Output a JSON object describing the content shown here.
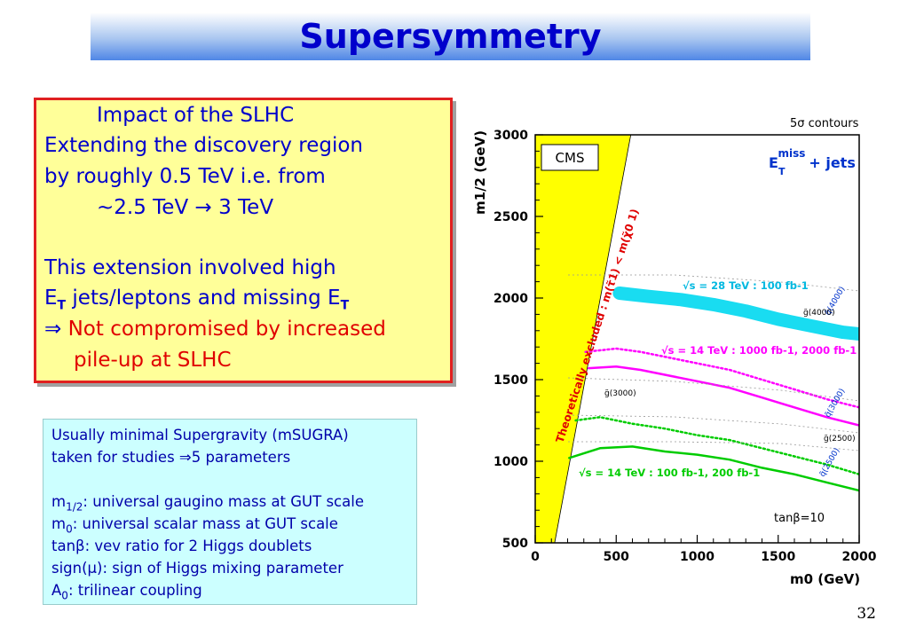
{
  "slide": {
    "title": "Supersymmetry",
    "page_number": "32"
  },
  "box1": {
    "line1": "Impact of the SLHC",
    "line2": "Extending the discovery region",
    "line3": "by roughly 0.5 TeV i.e. from",
    "line4": "~2.5 TeV → 3 TeV",
    "line5": "This extension involved high",
    "line6a": "E",
    "line6b": "T",
    "line6c": " jets/leptons and missing E",
    "line6d": "T",
    "line7a": "⇒",
    "line7b": " Not compromised by increased",
    "line8": "pile-up at SLHC"
  },
  "box2": {
    "line1": "Usually minimal Supergravity (mSUGRA)",
    "line2a": "taken for  studies ",
    "line2b": "⇒",
    "line2c": "5 parameters",
    "line3a": "m",
    "line3b": "1/2",
    "line3c": ": universal gaugino mass at GUT scale",
    "line4a": "m",
    "line4b": "0",
    "line4c": ":    universal scalar mass at GUT scale",
    "line5": "tanβ: vev ratio for 2 Higgs doublets",
    "line6": "sign(μ): sign of Higgs mixing parameter",
    "line7a": "A",
    "line7b": "0",
    "line7c": ":    trilinear coupling"
  },
  "chart_data": {
    "type": "line",
    "title": "5σ contours",
    "xlabel": "m0  (GeV)",
    "ylabel": "m1/2  (GeV)",
    "xlim": [
      0,
      2000
    ],
    "ylim": [
      500,
      3000
    ],
    "x_ticks": [
      "0",
      "500",
      "1000",
      "1500",
      "2000"
    ],
    "y_ticks": [
      "500",
      "1000",
      "1500",
      "2000",
      "2500",
      "3000"
    ],
    "channel_label": "E_T^miss + jets",
    "experiment_label": "CMS",
    "parameter_label": "tanβ=10",
    "excluded_region": {
      "label": "Theoretically excluded  :  m(τ̃1) < m(χ̃0 1)",
      "color": "#ffff00",
      "boundary": [
        [
          120,
          500
        ],
        [
          590,
          3000
        ]
      ]
    },
    "series": [
      {
        "name": "√s = 28 TeV : 100 fb-1",
        "color": "#00d8f0",
        "style": "band",
        "x": [
          520,
          700,
          900,
          1100,
          1300,
          1500,
          1700,
          1900,
          2000
        ],
        "y": [
          2030,
          2010,
          1990,
          1960,
          1920,
          1870,
          1830,
          1790,
          1780
        ]
      },
      {
        "name": "√s = 14 TeV : 1000 fb-1",
        "color": "#ff00ff",
        "style": "solid",
        "x": [
          330,
          500,
          650,
          800,
          1000,
          1200,
          1400,
          1600,
          1800,
          2000
        ],
        "y": [
          1570,
          1580,
          1560,
          1530,
          1490,
          1450,
          1390,
          1330,
          1270,
          1220
        ]
      },
      {
        "name": "2000 fb-1",
        "color": "#ff00ff",
        "style": "dotted",
        "x": [
          310,
          500,
          650,
          800,
          1000,
          1200,
          1400,
          1600,
          1800,
          2000
        ],
        "y": [
          1670,
          1690,
          1670,
          1640,
          1600,
          1560,
          1500,
          1440,
          1380,
          1330
        ]
      },
      {
        "name": "√s = 14 TeV : 100 fb-1",
        "color": "#00cc00",
        "style": "solid",
        "x": [
          210,
          400,
          600,
          800,
          1000,
          1200,
          1400,
          1600,
          1800,
          2000
        ],
        "y": [
          1020,
          1080,
          1090,
          1060,
          1040,
          1010,
          960,
          920,
          870,
          820
        ]
      },
      {
        "name": "200 fb-1",
        "color": "#00cc00",
        "style": "dotted",
        "x": [
          250,
          400,
          600,
          800,
          1000,
          1200,
          1400,
          1600,
          1800,
          2000
        ],
        "y": [
          1250,
          1270,
          1230,
          1200,
          1160,
          1130,
          1080,
          1030,
          980,
          920
        ]
      }
    ],
    "iso_mass_curves": [
      "q̃(4000)",
      "g̃(4000)",
      "g̃(3000)",
      "q̃(3000)",
      "g̃(2500)",
      "q̃(2500)"
    ],
    "grid": false,
    "legend": "inline labels"
  }
}
